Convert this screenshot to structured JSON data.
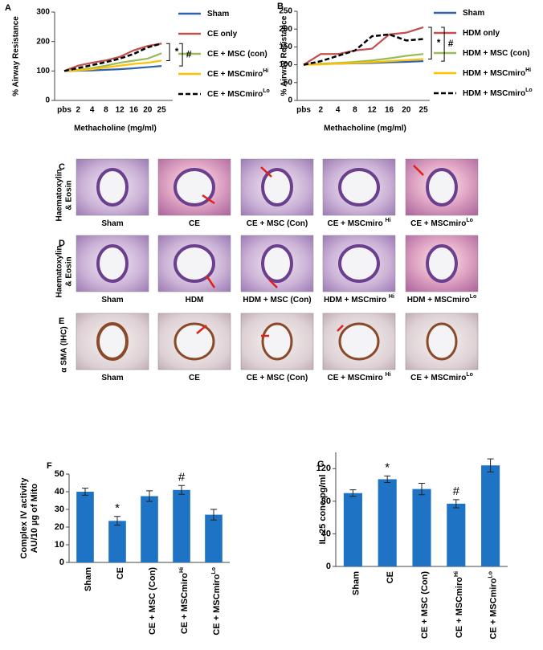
{
  "chart_data": [
    {
      "panel": "A",
      "type": "line",
      "ylabel": "% Airway Resistance",
      "xlabel": "Methacholine (mg/ml)",
      "categories": [
        "pbs",
        "2",
        "4",
        "8",
        "12",
        "16",
        "20",
        "25"
      ],
      "ylim": [
        0,
        300
      ],
      "yticks": [
        0,
        100,
        200,
        300
      ],
      "legend": "right",
      "series": [
        {
          "name": "Sham",
          "color": "#2f64ad",
          "values": [
            100,
            101,
            102,
            104,
            106,
            109,
            113,
            117
          ]
        },
        {
          "name": "CE only",
          "color": "#c0504d",
          "values": [
            100,
            118,
            128,
            136,
            148,
            170,
            185,
            193
          ]
        },
        {
          "name": "CE + MSC (con)",
          "color": "#9bbb59",
          "values": [
            100,
            104,
            110,
            118,
            128,
            135,
            142,
            160
          ]
        },
        {
          "name": "CE + MSCmiro",
          "superscript": "Hi",
          "color": "#ffc000",
          "values": [
            100,
            102,
            106,
            112,
            118,
            124,
            128,
            135
          ]
        },
        {
          "name": "CE + MSCmiro",
          "superscript": "Lo",
          "color": "#000000",
          "dashed": true,
          "values": [
            100,
            110,
            120,
            130,
            142,
            158,
            180,
            193
          ]
        }
      ],
      "annotations": [
        "*",
        "#"
      ]
    },
    {
      "panel": "B",
      "type": "line",
      "ylabel": "% Airway Resistance",
      "xlabel": "Methacholine (mg/ml)",
      "categories": [
        "pbs",
        "2",
        "4",
        "8",
        "12",
        "16",
        "20",
        "25"
      ],
      "ylim": [
        0,
        250
      ],
      "yticks": [
        0,
        50,
        100,
        150,
        200,
        250
      ],
      "legend": "right",
      "series": [
        {
          "name": "Sham",
          "color": "#2f64ad",
          "values": [
            100,
            102,
            103,
            104,
            105,
            107,
            108,
            110
          ]
        },
        {
          "name": "HDM only",
          "color": "#c0504d",
          "values": [
            100,
            130,
            130,
            140,
            145,
            185,
            190,
            205
          ]
        },
        {
          "name": "HDM + MSC (con)",
          "color": "#9bbb59",
          "values": [
            100,
            103,
            105,
            108,
            112,
            118,
            125,
            130
          ]
        },
        {
          "name": "HDM + MSCmiro",
          "superscript": "Hi",
          "color": "#ffc000",
          "values": [
            100,
            101,
            103,
            105,
            107,
            110,
            113,
            116
          ]
        },
        {
          "name": "HDM + MSCmiro",
          "superscript": "Lo",
          "color": "#000000",
          "dashed": true,
          "values": [
            100,
            110,
            125,
            140,
            180,
            185,
            168,
            172
          ]
        }
      ],
      "annotations": [
        "*",
        "#"
      ]
    },
    {
      "panel": "F",
      "type": "bar",
      "ylabel": [
        "Complex IV activity",
        "AU/10 µg of Mito"
      ],
      "color": "#1f73c4",
      "categories": [
        "Sham",
        "CE",
        "CE + MSC (Con)",
        "CE + MSCmiro",
        "CE + MSCmiro"
      ],
      "category_superscripts": [
        null,
        null,
        null,
        "Hi",
        "Lo"
      ],
      "values": [
        40,
        23.5,
        37.5,
        41,
        27
      ],
      "errors": [
        2,
        2.5,
        3,
        2.5,
        3
      ],
      "ylim": [
        0,
        50
      ],
      "yticks": [
        0,
        10,
        20,
        30,
        40,
        50
      ],
      "annotations": [
        {
          "label": "*",
          "category": 1
        },
        {
          "label": "#",
          "category": 3
        }
      ]
    },
    {
      "panel": "G",
      "type": "bar",
      "ylabel": [
        "IL-25 conc pg/ml"
      ],
      "color": "#1f73c4",
      "categories": [
        "Sham",
        "CE",
        "CE + MSC (Con)",
        "CE + MSCmiro",
        "CE + MSCmiro"
      ],
      "category_superscripts": [
        null,
        null,
        null,
        "Hi",
        "Lo"
      ],
      "values": [
        90,
        107,
        95,
        77,
        124
      ],
      "errors": [
        4,
        4,
        7,
        5,
        8
      ],
      "ylim": [
        0,
        140
      ],
      "yticks": [
        0,
        40,
        80,
        120
      ],
      "annotations": [
        {
          "label": "*",
          "category": 1
        },
        {
          "label": "#",
          "category": 3
        }
      ]
    }
  ],
  "image_panels": [
    {
      "panel": "C",
      "label": [
        "Haematoxylin",
        "& Eosin"
      ],
      "captions": [
        {
          "text": "Sham"
        },
        {
          "text": "CE"
        },
        {
          "text": "CE + MSC (Con)"
        },
        {
          "text": "CE + MSCmiro ",
          "sup": "Hi"
        },
        {
          "text": "CE + MSCmiro",
          "sup": "Lo"
        }
      ]
    },
    {
      "panel": "D",
      "label": [
        "Haematoxylin",
        "& Eosin"
      ],
      "captions": [
        {
          "text": "Sham"
        },
        {
          "text": "HDM"
        },
        {
          "text": "HDM + MSC (Con)"
        },
        {
          "text": "HDM + MSCmiro ",
          "sup": "Hi"
        },
        {
          "text": "HDM + MSCmiro",
          "sup": "Lo"
        }
      ]
    },
    {
      "panel": "E",
      "label": [
        "α SMA (IHC)"
      ],
      "captions": [
        {
          "text": "Sham"
        },
        {
          "text": "CE"
        },
        {
          "text": "CE + MSC (Con)"
        },
        {
          "text": "CE + MSCmiro ",
          "sup": "Hi"
        },
        {
          "text": "CE + MSCmiro",
          "sup": "Lo"
        }
      ]
    }
  ]
}
